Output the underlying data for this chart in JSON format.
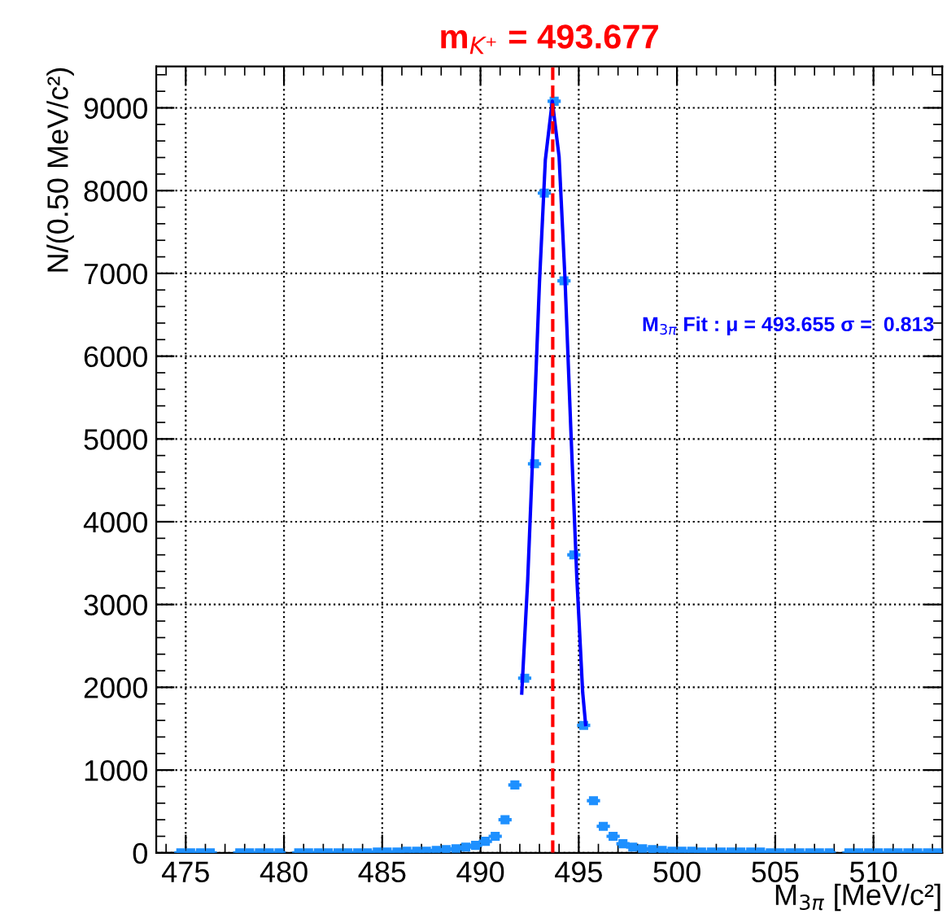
{
  "chart_data": {
    "type": "scatter",
    "title": "m$_{K⁺}$ = 493.677",
    "xlabel": "M$_{3π}$ [MeV/c²]",
    "ylabel": "N/(0.50 MeV/c²)",
    "annotations": [
      "M$_{3π}$ Fit : μ = 493.655 σ =  0.813"
    ],
    "xlim": [
      473.5,
      513.5
    ],
    "xticks": [
      475,
      480,
      485,
      490,
      495,
      500,
      505,
      510
    ],
    "ylim": [
      0,
      9500
    ],
    "yticks": [
      0,
      1000,
      2000,
      3000,
      4000,
      5000,
      6000,
      7000,
      8000,
      9000
    ],
    "grid": true,
    "marker": "square",
    "ref_lines": [
      {
        "axis": "x",
        "value": 493.677,
        "color": "#ff0000",
        "line_style": "dashed"
      }
    ],
    "series": [
      {
        "color": "#1e90ff",
        "xerrors": [
          0.25,
          0.25,
          0.25,
          0.25,
          null,
          null,
          0.25,
          0.25,
          0.25,
          0.25,
          0.25,
          null,
          0.25,
          0.25,
          0.25,
          0.25,
          0.25,
          0.25,
          0.25,
          0.25,
          0.25,
          0.25,
          0.25,
          0.25,
          0.25,
          0.25,
          0.25,
          0.25,
          0.25,
          0.25,
          0.25,
          0.25,
          0.25,
          0.25,
          0.25,
          0.25,
          0.25,
          0.25,
          0.25,
          0.25,
          0.25,
          0.25,
          0.25,
          0.25,
          0.25,
          0.25,
          0.25,
          0.25,
          0.25,
          0.25,
          0.25,
          0.25,
          0.25,
          0.25,
          0.25,
          0.25,
          0.25,
          0.25,
          0.25,
          0.25,
          0.25,
          0.25,
          0.25,
          0.25,
          0.25,
          0.25,
          0.25,
          null,
          0.25,
          0.25,
          0.25,
          0.25,
          0.25,
          0.25,
          0.25,
          0.25,
          0.25,
          0.25
        ],
        "x": [
          474.75,
          475.25,
          475.75,
          476.25,
          476.75,
          477.25,
          477.75,
          478.25,
          478.75,
          479.25,
          479.75,
          480.25,
          480.75,
          481.25,
          481.75,
          482.25,
          482.75,
          483.25,
          483.75,
          484.25,
          484.75,
          485.25,
          485.75,
          486.25,
          486.75,
          487.25,
          487.75,
          488.25,
          488.75,
          489.25,
          489.75,
          490.25,
          490.75,
          491.25,
          491.75,
          492.25,
          492.75,
          493.25,
          493.75,
          494.25,
          494.75,
          495.25,
          495.75,
          496.25,
          496.75,
          497.25,
          497.75,
          498.25,
          498.75,
          499.25,
          499.75,
          500.25,
          500.75,
          501.25,
          501.75,
          502.25,
          502.75,
          503.25,
          503.75,
          504.25,
          504.75,
          505.25,
          505.75,
          506.25,
          506.75,
          507.25,
          507.75,
          508.25,
          508.75,
          509.25,
          509.75,
          510.25,
          510.75,
          511.25,
          511.75,
          512.25,
          512.75,
          513.25
        ],
        "values": [
          0,
          0,
          0,
          0,
          null,
          null,
          0,
          0,
          0,
          0,
          0,
          null,
          0,
          0,
          0,
          0,
          0,
          0,
          0,
          0,
          10,
          10,
          10,
          20,
          20,
          20,
          30,
          40,
          50,
          70,
          90,
          140,
          200,
          400,
          820,
          2110,
          4700,
          7970,
          9080,
          6910,
          3600,
          1540,
          630,
          320,
          200,
          110,
          70,
          50,
          40,
          30,
          20,
          20,
          20,
          10,
          10,
          10,
          10,
          10,
          10,
          10,
          0,
          0,
          0,
          0,
          0,
          0,
          0,
          null,
          0,
          0,
          0,
          0,
          0,
          0,
          0,
          0,
          0,
          0
        ]
      },
      {
        "type": "line",
        "color": "#0000ff",
        "marker": "none",
        "x": [
          492.1,
          492.4,
          492.7,
          493.0,
          493.3,
          493.655,
          494.0,
          494.3,
          494.6,
          494.9,
          495.2,
          495.35
        ],
        "values": [
          1930,
          3280,
          5040,
          6880,
          8370,
          9080,
          8410,
          6940,
          5100,
          3340,
          1940,
          1550
        ]
      }
    ]
  }
}
